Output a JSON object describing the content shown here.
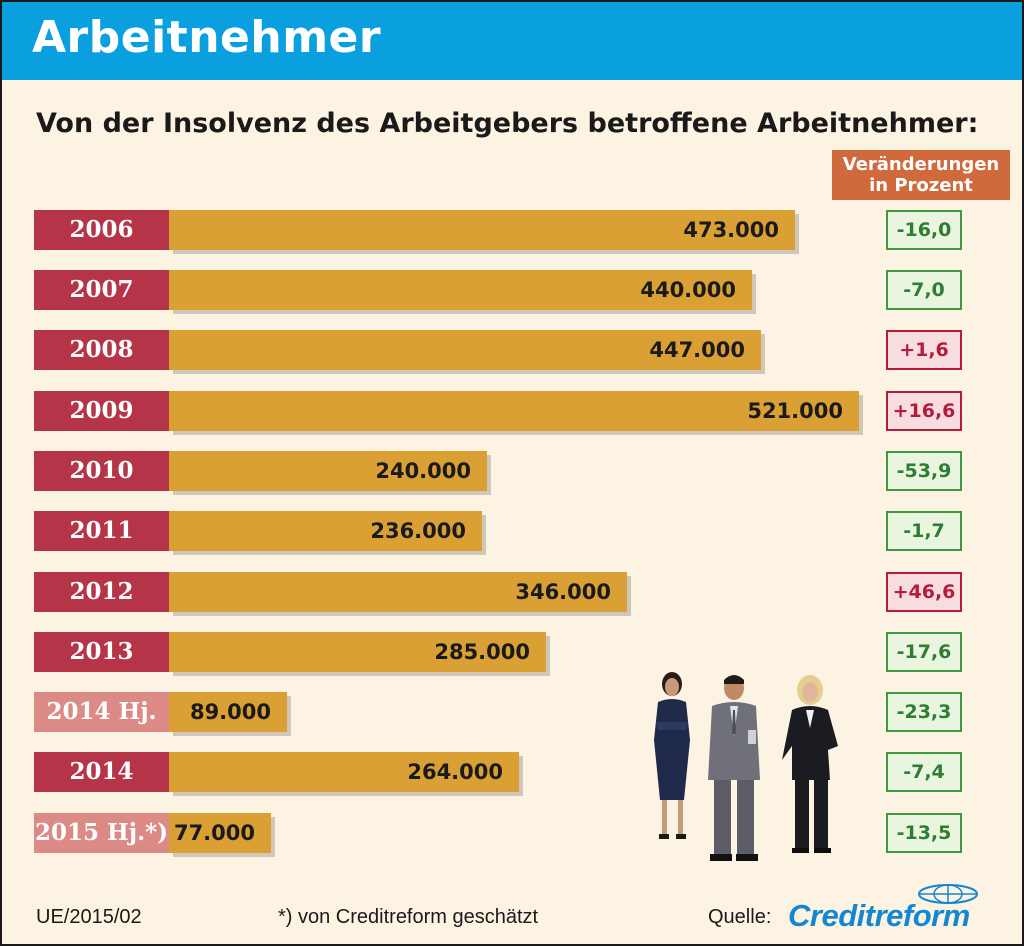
{
  "header": {
    "title": "Arbeitnehmer"
  },
  "subtitle": "Von der Insolvenz des Arbeitgebers betroffene Arbeitnehmer:",
  "change_header": {
    "line1": "Veränderungen",
    "line2": "in Prozent"
  },
  "colors": {
    "header": "#0a9fdf",
    "bar": "#dba034",
    "year_full": "#b53447",
    "year_partial": "#dc8a86",
    "negative_text": "#2e7d32",
    "negative_border": "#3f9a3f",
    "negative_fill": "#e9f5df",
    "positive_text": "#b31c3a",
    "positive_border": "#b31c3a",
    "positive_fill": "#f7dde0",
    "logo": "#1487d2"
  },
  "chart_data": {
    "type": "bar",
    "orientation": "horizontal",
    "categories": [
      "2006",
      "2007",
      "2008",
      "2009",
      "2010",
      "2011",
      "2012",
      "2013",
      "2014 Hj.",
      "2014",
      "2015 Hj.*)"
    ],
    "values": [
      473000,
      440000,
      447000,
      521000,
      240000,
      236000,
      346000,
      285000,
      89000,
      264000,
      77000
    ],
    "value_labels": [
      "473.000",
      "440.000",
      "447.000",
      "521.000",
      "240.000",
      "236.000",
      "346.000",
      "285.000",
      "89.000",
      "264.000",
      "77.000"
    ],
    "partial_year": [
      false,
      false,
      false,
      false,
      false,
      false,
      false,
      false,
      true,
      false,
      true
    ],
    "change_percent": [
      -16.0,
      -7.0,
      1.6,
      16.6,
      -53.9,
      -1.7,
      46.6,
      -17.6,
      -23.3,
      -7.4,
      -13.5
    ],
    "change_labels": [
      "-16,0",
      "-7,0",
      "+1,6",
      "+16,6",
      "-53,9",
      "-1,7",
      "+46,6",
      "-17,6",
      "-23,3",
      "-7,4",
      "-13,5"
    ],
    "title": "Von der Insolvenz des Arbeitgebers betroffene Arbeitnehmer:",
    "xlabel": "",
    "ylabel": "",
    "grid": false,
    "legend": "none"
  },
  "footer": {
    "code": "UE/2015/02",
    "note": "*) von Creditreform geschätzt",
    "source_label": "Quelle:",
    "logo_text": "Creditreform"
  }
}
